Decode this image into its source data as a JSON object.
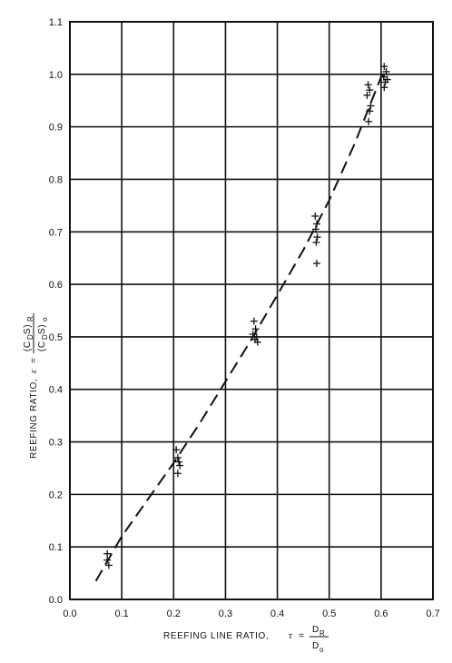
{
  "chart_data": {
    "type": "scatter",
    "x_axis": {
      "label": "REEFING LINE RATIO,",
      "symbol": "τ",
      "equals": "=",
      "fraction_top": "D",
      "fraction_top_sub": "R",
      "fraction_bottom": "D",
      "fraction_bottom_sub": "o",
      "range": [
        0.0,
        0.7
      ],
      "ticks": [
        "0.0",
        "0.1",
        "0.2",
        "0.3",
        "0.4",
        "0.5",
        "0.6",
        "0.7"
      ]
    },
    "y_axis": {
      "label": "REEFING RATIO,",
      "symbol": "ε",
      "equals": "=",
      "fraction_top": "(C",
      "fraction_top_sub1": "D",
      "fraction_top_mid": "S)",
      "fraction_top_sub2": "R",
      "fraction_bottom": "(C",
      "fraction_bottom_sub1": "D",
      "fraction_bottom_mid": "S)",
      "fraction_bottom_sub2": "o",
      "range": [
        0.0,
        1.1
      ],
      "ticks": [
        "0.0",
        "0.1",
        "0.2",
        "0.3",
        "0.4",
        "0.5",
        "0.6",
        "0.7",
        "0.8",
        "0.9",
        "1.0",
        "1.1"
      ]
    },
    "grid": true,
    "series": [
      {
        "kind": "points",
        "marker": "+",
        "points": [
          [
            0.072,
            0.087
          ],
          [
            0.072,
            0.075
          ],
          [
            0.075,
            0.065
          ],
          [
            0.205,
            0.285
          ],
          [
            0.208,
            0.27
          ],
          [
            0.21,
            0.262
          ],
          [
            0.212,
            0.255
          ],
          [
            0.208,
            0.24
          ],
          [
            0.355,
            0.53
          ],
          [
            0.358,
            0.515
          ],
          [
            0.353,
            0.505
          ],
          [
            0.36,
            0.5
          ],
          [
            0.357,
            0.495
          ],
          [
            0.362,
            0.49
          ],
          [
            0.473,
            0.73
          ],
          [
            0.476,
            0.715
          ],
          [
            0.474,
            0.705
          ],
          [
            0.477,
            0.69
          ],
          [
            0.475,
            0.68
          ],
          [
            0.476,
            0.64
          ],
          [
            0.575,
            0.98
          ],
          [
            0.578,
            0.97
          ],
          [
            0.573,
            0.96
          ],
          [
            0.58,
            0.94
          ],
          [
            0.578,
            0.93
          ],
          [
            0.576,
            0.91
          ],
          [
            0.606,
            1.015
          ],
          [
            0.61,
            1.005
          ],
          [
            0.605,
            0.995
          ],
          [
            0.612,
            0.99
          ],
          [
            0.608,
            0.985
          ],
          [
            0.606,
            0.975
          ]
        ]
      },
      {
        "kind": "curve",
        "style": "dashed",
        "x": [
          0.05,
          0.1,
          0.15,
          0.2,
          0.25,
          0.3,
          0.35,
          0.4,
          0.45,
          0.5,
          0.55,
          0.58,
          0.6,
          0.61
        ],
        "y": [
          0.035,
          0.12,
          0.19,
          0.26,
          0.335,
          0.415,
          0.495,
          0.58,
          0.665,
          0.76,
          0.87,
          0.945,
          0.995,
          1.0
        ]
      }
    ]
  }
}
